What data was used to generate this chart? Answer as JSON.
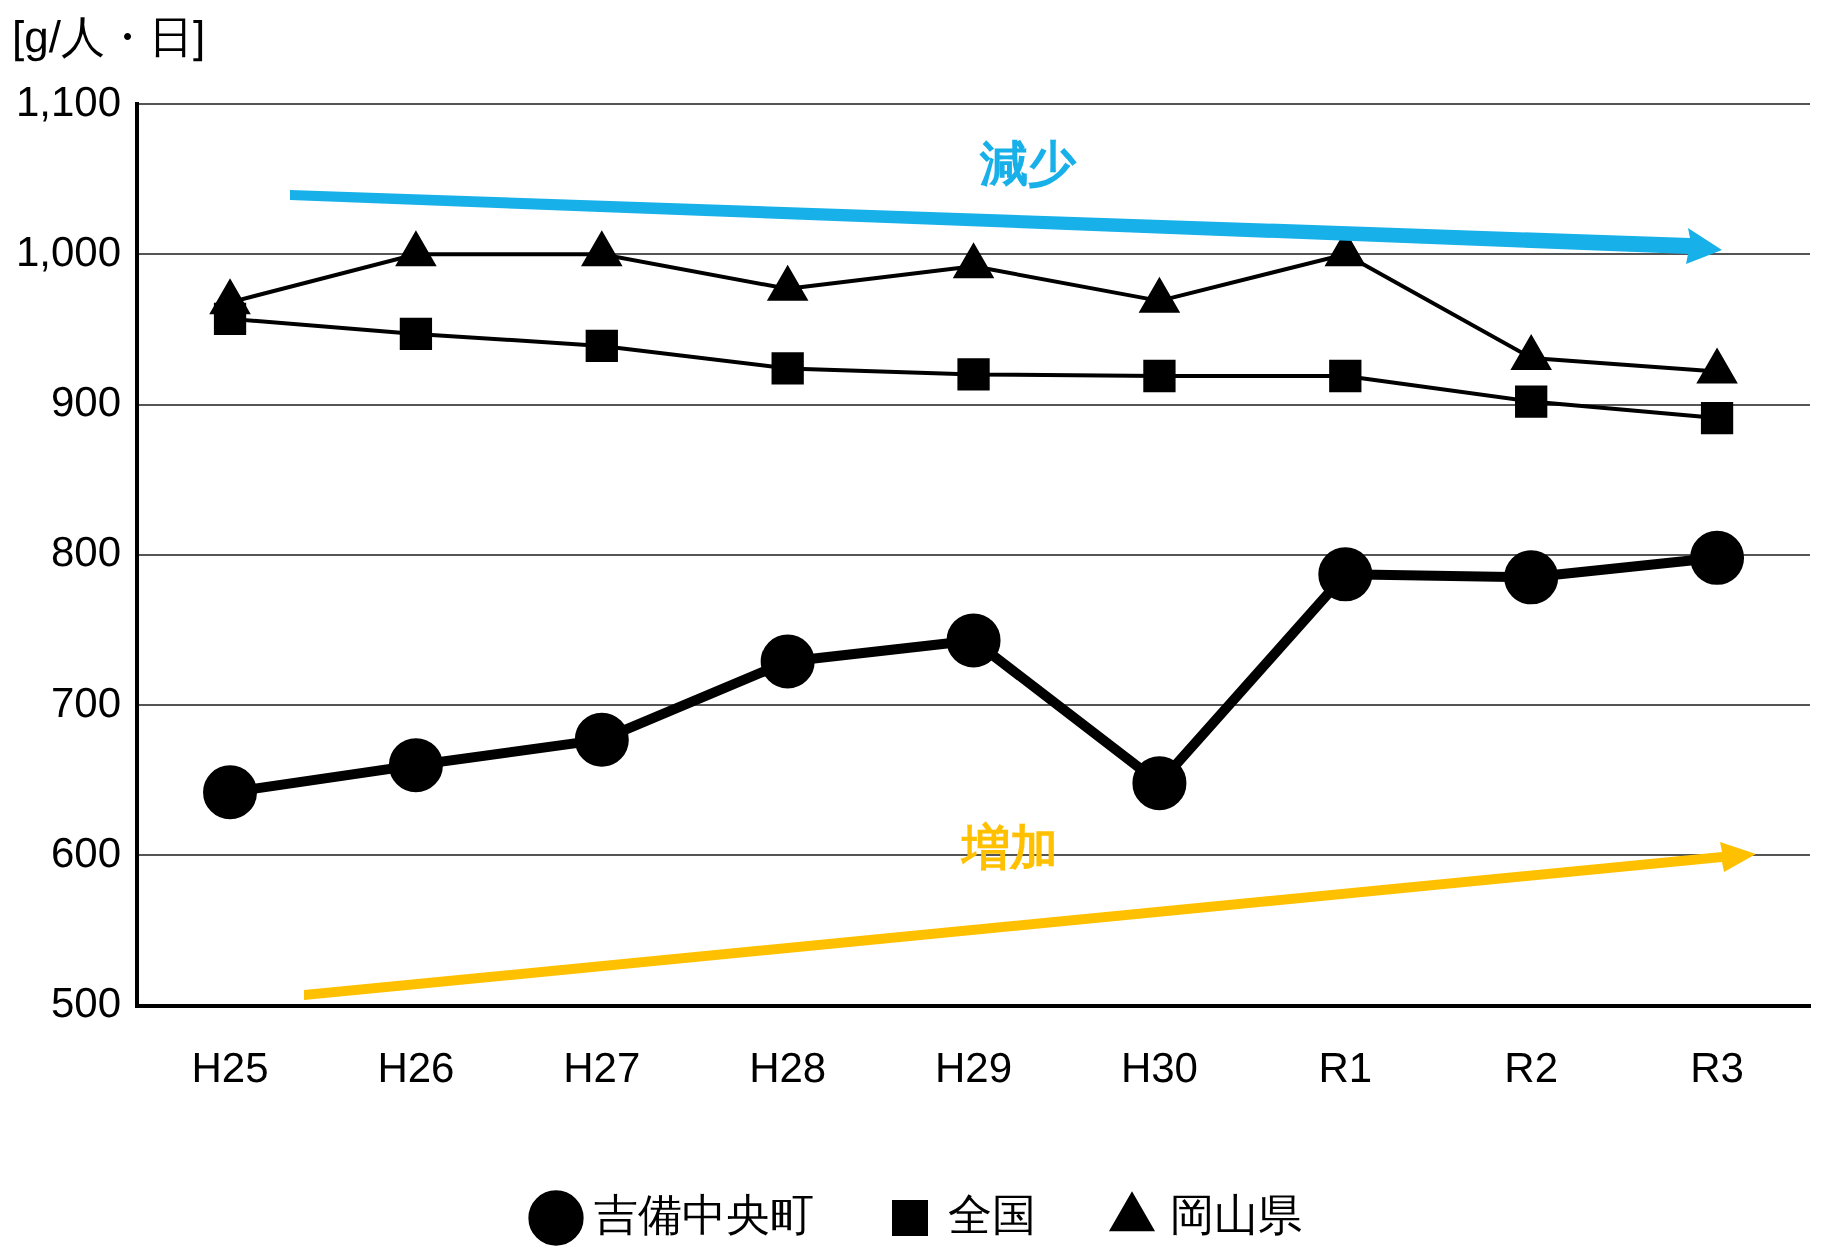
{
  "chart_data": {
    "type": "line",
    "ylabel": "[g/人・日]",
    "categories": [
      "H25",
      "H26",
      "H27",
      "H28",
      "H29",
      "H30",
      "R1",
      "R2",
      "R3"
    ],
    "series": [
      {
        "name": "吉備中央町",
        "color": "#000000",
        "marker": "circle",
        "values": [
          642,
          660,
          677,
          729,
          743,
          648,
          787,
          785,
          798
        ]
      },
      {
        "name": "全国",
        "color": "#000000",
        "marker": "square",
        "values": [
          957,
          947,
          939,
          924,
          920,
          919,
          919,
          902,
          891
        ]
      },
      {
        "name": "岡山県",
        "color": "#000000",
        "marker": "triangle",
        "values": [
          968,
          1000,
          1000,
          977,
          992,
          969,
          1000,
          931,
          922
        ]
      }
    ],
    "ylim": [
      500,
      1100
    ],
    "yticks": [
      {
        "value": 500,
        "label": "500"
      },
      {
        "value": 600,
        "label": "600"
      },
      {
        "value": 700,
        "label": "700"
      },
      {
        "value": 800,
        "label": "800"
      },
      {
        "value": 900,
        "label": "900"
      },
      {
        "value": 1000,
        "label": "1,000"
      },
      {
        "value": 1100,
        "label": "1,100"
      }
    ],
    "grid": "y",
    "legend": "bottom",
    "annotations": [
      "減少",
      "増加"
    ]
  }
}
